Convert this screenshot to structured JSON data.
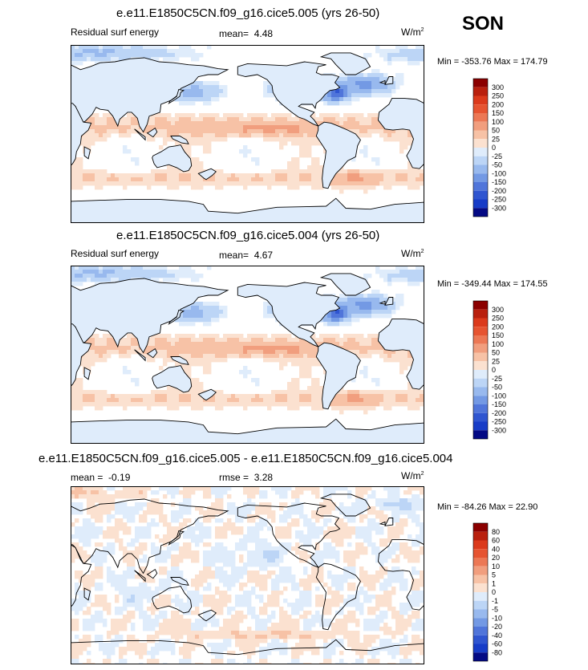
{
  "season": "SON",
  "colors": {
    "pos": [
      "#fbe1d0",
      "#f7c2a6",
      "#f19e7e",
      "#ec7855",
      "#e65431",
      "#db3a1c",
      "#b9200e",
      "#8b0000"
    ],
    "neg": [
      "#dfecfb",
      "#bcd5f6",
      "#98b9ee",
      "#7399e4",
      "#5075da",
      "#2f55d0",
      "#173cc7",
      "#040a84"
    ],
    "mid": "#ffffff",
    "land": "#dfecfb",
    "coast": "#000000"
  },
  "chart_data": [
    {
      "type": "heatmap",
      "title": "e.e11.E1850C5CN.f09_g16.cice5.005 (yrs 26-50)",
      "variable": "Residual surf energy",
      "mean_label": "mean=",
      "mean_value": "4.48",
      "units": "W/m",
      "units_exp": "2",
      "minmax": "Min = -353.76 Max = 174.79",
      "colorbar_labels": [
        "300",
        "250",
        "200",
        "150",
        "100",
        "50",
        "25",
        "0",
        "-25",
        "-50",
        "-100",
        "-150",
        "-200",
        "-250",
        "-300"
      ],
      "pattern": "a"
    },
    {
      "type": "heatmap",
      "title": "e.e11.E1850C5CN.f09_g16.cice5.004 (yrs 26-50)",
      "variable": "Residual surf energy",
      "mean_label": "mean=",
      "mean_value": "4.67",
      "units": "W/m",
      "units_exp": "2",
      "minmax": "Min = -349.44 Max = 174.55",
      "colorbar_labels": [
        "300",
        "250",
        "200",
        "150",
        "100",
        "50",
        "25",
        "0",
        "-25",
        "-50",
        "-100",
        "-150",
        "-200",
        "-250",
        "-300"
      ],
      "pattern": "a"
    },
    {
      "type": "heatmap",
      "title": "e.e11.E1850C5CN.f09_g16.cice5.005 - e.e11.E1850C5CN.f09_g16.cice5.004",
      "mean_label": "mean =",
      "mean_value": "-0.19",
      "rmse_label": "rmse =",
      "rmse_value": "3.28",
      "units": "W/m",
      "units_exp": "2",
      "minmax": "Min = -84.26 Max = 22.90",
      "colorbar_labels": [
        "80",
        "60",
        "40",
        "20",
        "10",
        "5",
        "1",
        "0",
        "-1",
        "-5",
        "-10",
        "-20",
        "-40",
        "-60",
        "-80"
      ],
      "pattern": "b"
    }
  ]
}
